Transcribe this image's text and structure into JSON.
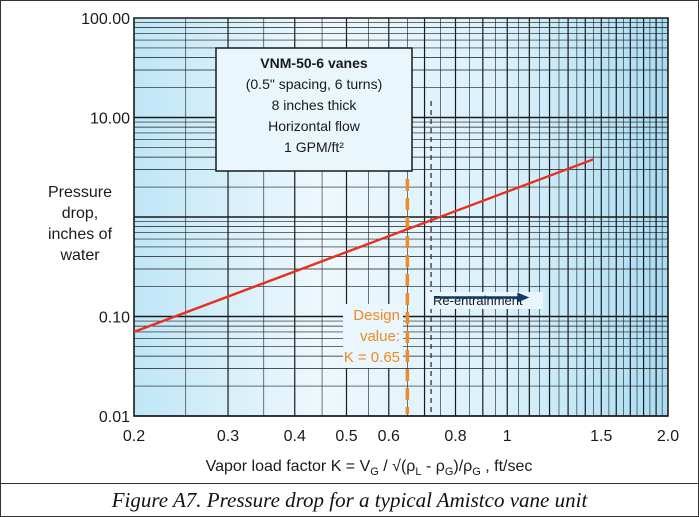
{
  "chart_data": {
    "type": "line",
    "title_box": {
      "lines": [
        "VNM-50-6 vanes",
        "(0.5\" spacing, 6 turns)",
        "8 inches thick",
        "Horizontal flow",
        "1 GPM/ft²"
      ]
    },
    "ylabel": [
      "Pressure",
      "drop,",
      "inches of",
      "water"
    ],
    "xlabel_parts": {
      "prefix": "Vapor load factor K = V",
      "sub_g1": "G",
      "mid1": " / √(ρ",
      "sub_l": "L",
      "mid2": " - ρ",
      "sub_g2": "G",
      "mid3": ")/ρ",
      "sub_g3": "G",
      "suffix": " , ft/sec"
    },
    "x_scale": "log",
    "y_scale": "log",
    "xlim": [
      0.2,
      2.0
    ],
    "ylim": [
      0.01,
      100
    ],
    "x_ticks": [
      {
        "v": 0.2,
        "t": "0.2"
      },
      {
        "v": 0.3,
        "t": "0.3"
      },
      {
        "v": 0.4,
        "t": "0.4"
      },
      {
        "v": 0.5,
        "t": "0.5"
      },
      {
        "v": 0.6,
        "t": "0.6"
      },
      {
        "v": 0.8,
        "t": "0.8"
      },
      {
        "v": 1.0,
        "t": "1"
      },
      {
        "v": 1.5,
        "t": "1.5"
      },
      {
        "v": 2.0,
        "t": "2.0"
      }
    ],
    "y_ticks": [
      {
        "v": 100,
        "t": "100.00"
      },
      {
        "v": 10,
        "t": "10.00"
      },
      {
        "v": 1,
        "t": ""
      },
      {
        "v": 0.1,
        "t": "0.10"
      },
      {
        "v": 0.01,
        "t": "0.01"
      }
    ],
    "series": [
      {
        "x": [
          0.2,
          1.45
        ],
        "y": [
          0.07,
          3.8
        ],
        "color": "#e8301e"
      }
    ],
    "design_value": {
      "x": 0.65,
      "lines": [
        "Design",
        "value:",
        "K = 0.65"
      ],
      "color": "#f08a24"
    },
    "reentrainment": {
      "x": 0.72,
      "x_end": 1.1,
      "y": 0.155,
      "label": "Re-entrainment",
      "arrow_color": "#123a63"
    },
    "grid": true,
    "colors": {
      "background": "#bfe6f7",
      "grid": "#1a1a1a",
      "dashed": "#333333"
    }
  },
  "caption": "Figure A7.  Pressure drop for a typical Amistco vane unit"
}
